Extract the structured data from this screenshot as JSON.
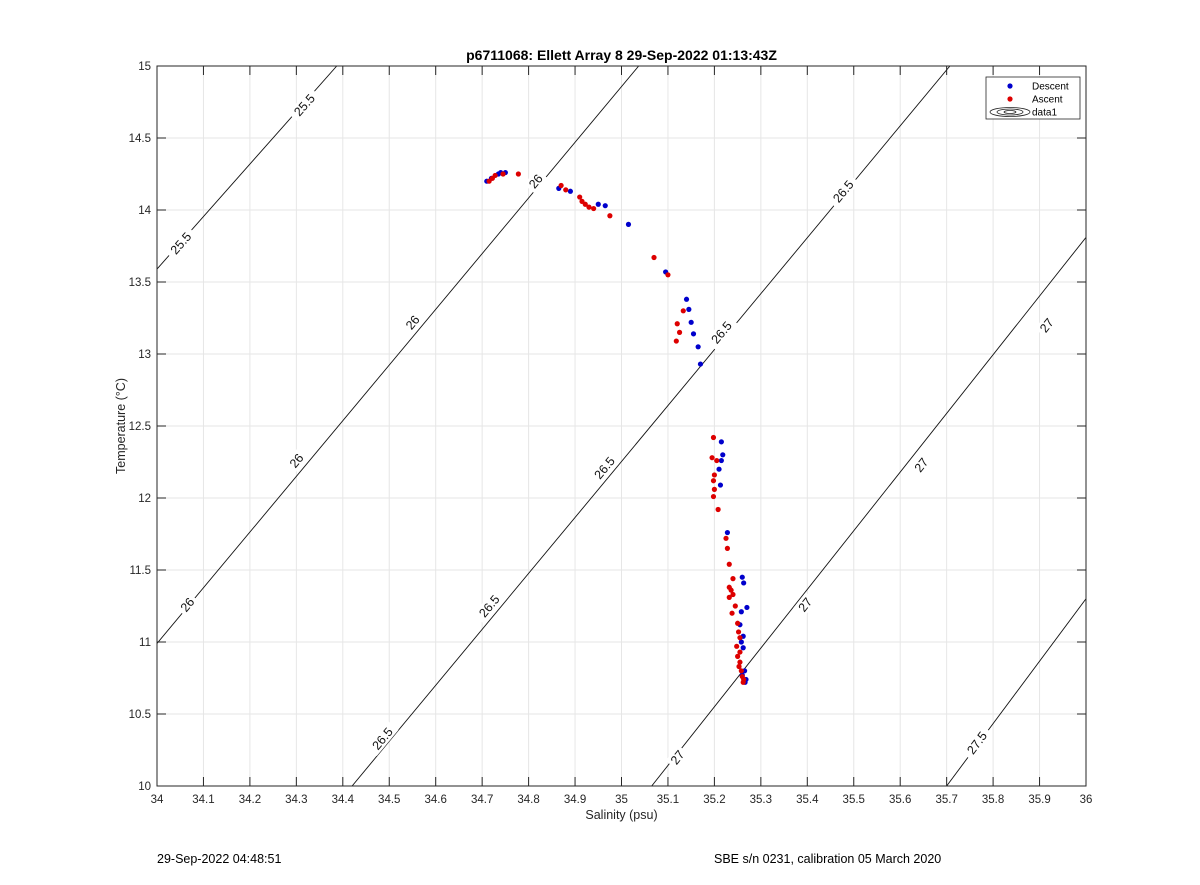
{
  "chart_data": {
    "type": "scatter",
    "title": "p6711068: Ellett Array 8 29-Sep-2022 01:13:43Z",
    "xlabel": "Salinity (psu)",
    "ylabel": "Temperature (°C)",
    "xlim": [
      34,
      36
    ],
    "ylim": [
      10,
      15
    ],
    "x_ticks": [
      "34",
      "34.1",
      "34.2",
      "34.3",
      "34.4",
      "34.5",
      "34.6",
      "34.7",
      "34.8",
      "34.9",
      "35",
      "35.1",
      "35.2",
      "35.3",
      "35.4",
      "35.5",
      "35.6",
      "35.7",
      "35.8",
      "35.9",
      "36"
    ],
    "y_ticks": [
      "10",
      "10.5",
      "11",
      "11.5",
      "12",
      "12.5",
      "13",
      "13.5",
      "14",
      "14.5",
      "15"
    ],
    "grid": true,
    "legend_position": "top-right",
    "legend": [
      {
        "label": "Descent",
        "color": "#0000cc",
        "marker": "dot"
      },
      {
        "label": "Ascent",
        "color": "#dd0000",
        "marker": "dot"
      },
      {
        "label": "data1",
        "marker": "contour"
      }
    ],
    "contours": [
      {
        "level": "25.5",
        "points": [
          [
            34.0,
            13.59
          ],
          [
            34.387,
            15.0
          ]
        ],
        "labels": [
          {
            "text": "25.5",
            "x": 34.317,
            "y": 14.73
          },
          {
            "text": "25.5",
            "x": 34.051,
            "y": 13.77
          }
        ]
      },
      {
        "level": "26",
        "points": [
          [
            34.0,
            10.99
          ],
          [
            35.037,
            15.0
          ]
        ],
        "labels": [
          {
            "text": "26",
            "x": 34.815,
            "y": 14.2
          },
          {
            "text": "26",
            "x": 34.55,
            "y": 13.22
          },
          {
            "text": "26",
            "x": 34.3,
            "y": 12.26
          },
          {
            "text": "26",
            "x": 34.065,
            "y": 11.26
          }
        ]
      },
      {
        "level": "26.5",
        "points": [
          [
            34.42,
            10.0
          ],
          [
            35.707,
            15.0
          ]
        ],
        "labels": [
          {
            "text": "26.5",
            "x": 35.477,
            "y": 14.13
          },
          {
            "text": "26.5",
            "x": 35.215,
            "y": 13.15
          },
          {
            "text": "26.5",
            "x": 34.963,
            "y": 12.21
          },
          {
            "text": "26.5",
            "x": 34.715,
            "y": 11.25
          },
          {
            "text": "26.5",
            "x": 34.485,
            "y": 10.33
          }
        ]
      },
      {
        "level": "27",
        "points": [
          [
            35.065,
            10.0
          ],
          [
            36.0,
            13.81
          ]
        ],
        "labels": [
          {
            "text": "27",
            "x": 35.915,
            "y": 13.2
          },
          {
            "text": "27",
            "x": 35.645,
            "y": 12.23
          },
          {
            "text": "27",
            "x": 35.395,
            "y": 11.26
          },
          {
            "text": "27",
            "x": 35.12,
            "y": 10.2
          }
        ]
      },
      {
        "level": "27.5",
        "points": [
          [
            35.7,
            10.0
          ],
          [
            36.0,
            11.3
          ]
        ],
        "labels": [
          {
            "text": "27.5",
            "x": 35.765,
            "y": 10.3
          }
        ]
      }
    ],
    "series": [
      {
        "name": "Descent",
        "color": "#0000cc",
        "points": [
          [
            34.71,
            14.2
          ],
          [
            34.72,
            14.22
          ],
          [
            34.735,
            14.25
          ],
          [
            34.74,
            14.26
          ],
          [
            34.75,
            14.26
          ],
          [
            34.865,
            14.15
          ],
          [
            34.89,
            14.13
          ],
          [
            34.95,
            14.04
          ],
          [
            34.965,
            14.03
          ],
          [
            35.015,
            13.9
          ],
          [
            35.095,
            13.57
          ],
          [
            35.14,
            13.38
          ],
          [
            35.145,
            13.31
          ],
          [
            35.15,
            13.22
          ],
          [
            35.155,
            13.14
          ],
          [
            35.165,
            13.05
          ],
          [
            35.17,
            12.93
          ],
          [
            35.215,
            12.39
          ],
          [
            35.218,
            12.3
          ],
          [
            35.215,
            12.26
          ],
          [
            35.21,
            12.2
          ],
          [
            35.213,
            12.09
          ],
          [
            35.228,
            11.76
          ],
          [
            35.26,
            11.45
          ],
          [
            35.263,
            11.41
          ],
          [
            35.27,
            11.24
          ],
          [
            35.258,
            11.21
          ],
          [
            35.255,
            11.12
          ],
          [
            35.262,
            11.04
          ],
          [
            35.258,
            11.0
          ],
          [
            35.262,
            10.96
          ],
          [
            35.265,
            10.8
          ],
          [
            35.26,
            10.77
          ],
          [
            35.268,
            10.74
          ],
          [
            35.266,
            10.72
          ]
        ]
      },
      {
        "name": "Ascent",
        "color": "#dd0000",
        "points": [
          [
            34.715,
            14.2
          ],
          [
            34.722,
            14.22
          ],
          [
            34.728,
            14.24
          ],
          [
            34.745,
            14.25
          ],
          [
            34.778,
            14.25
          ],
          [
            34.87,
            14.17
          ],
          [
            34.88,
            14.14
          ],
          [
            34.91,
            14.09
          ],
          [
            34.915,
            14.06
          ],
          [
            34.922,
            14.04
          ],
          [
            34.93,
            14.02
          ],
          [
            34.94,
            14.01
          ],
          [
            34.975,
            13.96
          ],
          [
            35.07,
            13.67
          ],
          [
            35.1,
            13.55
          ],
          [
            35.133,
            13.3
          ],
          [
            35.12,
            13.21
          ],
          [
            35.125,
            13.15
          ],
          [
            35.118,
            13.09
          ],
          [
            35.198,
            12.42
          ],
          [
            35.195,
            12.28
          ],
          [
            35.205,
            12.26
          ],
          [
            35.2,
            12.16
          ],
          [
            35.198,
            12.12
          ],
          [
            35.2,
            12.06
          ],
          [
            35.198,
            12.01
          ],
          [
            35.208,
            11.92
          ],
          [
            35.225,
            11.72
          ],
          [
            35.228,
            11.65
          ],
          [
            35.232,
            11.54
          ],
          [
            35.24,
            11.44
          ],
          [
            35.232,
            11.38
          ],
          [
            35.236,
            11.36
          ],
          [
            35.24,
            11.33
          ],
          [
            35.232,
            11.31
          ],
          [
            35.245,
            11.25
          ],
          [
            35.238,
            11.2
          ],
          [
            35.25,
            11.13
          ],
          [
            35.252,
            11.07
          ],
          [
            35.255,
            11.03
          ],
          [
            35.248,
            10.97
          ],
          [
            35.255,
            10.93
          ],
          [
            35.25,
            10.9
          ],
          [
            35.255,
            10.86
          ],
          [
            35.253,
            10.83
          ],
          [
            35.258,
            10.8
          ],
          [
            35.26,
            10.76
          ],
          [
            35.263,
            10.74
          ],
          [
            35.262,
            10.72
          ]
        ]
      }
    ]
  },
  "footer": {
    "left": "29-Sep-2022 04:48:51",
    "right": "SBE s/n 0231, calibration 05 March 2020"
  }
}
